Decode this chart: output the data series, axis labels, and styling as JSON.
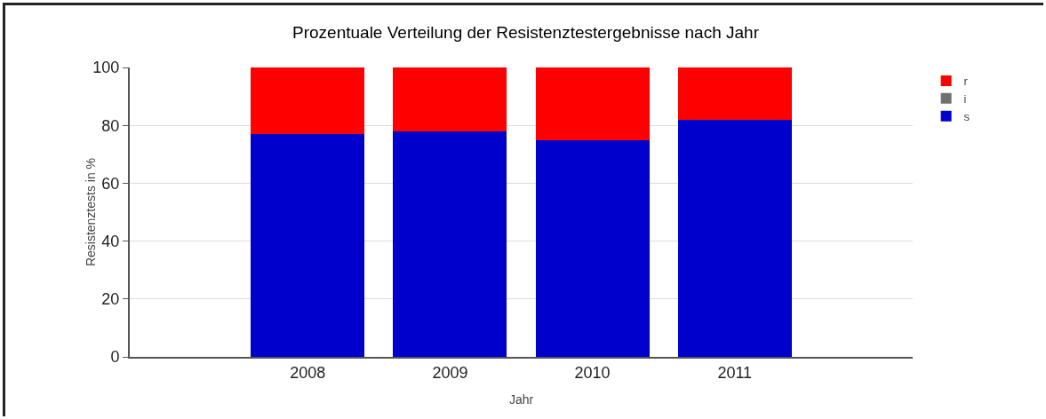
{
  "chart_data": {
    "type": "bar",
    "title": "Prozentuale Verteilung der Resistenztestergebnisse nach Jahr",
    "xlabel": "Jahr",
    "ylabel": "Resistenztests in %",
    "categories": [
      "2008",
      "2009",
      "2010",
      "2011"
    ],
    "series": [
      {
        "name": "s",
        "color": "#0000cc",
        "values": [
          77,
          78,
          75,
          82
        ]
      },
      {
        "name": "i",
        "color": "#707070",
        "values": [
          0,
          0,
          0,
          0
        ]
      },
      {
        "name": "r",
        "color": "#ff0000",
        "values": [
          23,
          22,
          25,
          18
        ]
      }
    ],
    "stacked": true,
    "ylim": [
      0,
      100
    ],
    "yticks": [
      0,
      20,
      40,
      60,
      80,
      100
    ],
    "grid": "y",
    "legend": "top right"
  }
}
